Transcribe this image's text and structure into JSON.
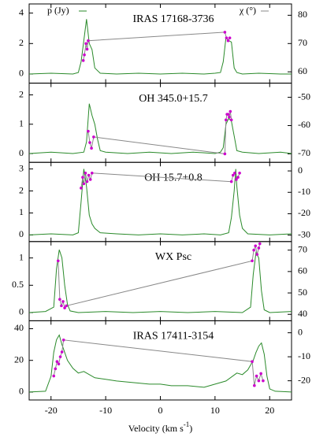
{
  "chart_data": [
    {
      "type": "line",
      "title": "IRAS 17168-3736",
      "ylim": [
        -0.6,
        4.6
      ],
      "yticks": [
        0,
        2,
        4
      ],
      "y2lim": [
        56,
        84
      ],
      "y2ticks": [
        60,
        70,
        80
      ],
      "series": [
        {
          "name": "p (Jy)",
          "color": "#2a8a2a",
          "x": [
            -24,
            -20,
            -16,
            -15,
            -14.5,
            -14,
            -13.5,
            -13,
            -12.5,
            -12,
            -11,
            -8,
            -4,
            0,
            4,
            8,
            10,
            11,
            11.5,
            12,
            12.5,
            13,
            13.5,
            14,
            15,
            18,
            22,
            24
          ],
          "values": [
            0,
            0.05,
            0,
            0.1,
            0.8,
            2.2,
            3.6,
            2.0,
            1.6,
            0.4,
            0.05,
            0,
            0.05,
            0,
            0.05,
            0,
            0.05,
            0.1,
            0.8,
            2.4,
            2.2,
            2.1,
            0.4,
            0.1,
            0,
            0.05,
            0,
            0
          ]
        },
        {
          "name": "χ (°)",
          "color": "#888888",
          "marker_color": "#cc00cc",
          "axis": "y2",
          "x": [
            -14.1,
            -13.9,
            -13.6,
            -13.4,
            -13.2,
            11.8,
            12.1,
            12.4,
            12.7
          ],
          "values": [
            64,
            66,
            70,
            68,
            71,
            74,
            72,
            71,
            72
          ]
        }
      ]
    },
    {
      "type": "line",
      "title": "OH 345.0+15.7",
      "ylim": [
        -0.3,
        2.4
      ],
      "yticks": [
        0,
        1,
        2
      ],
      "y2lim": [
        -73,
        -45
      ],
      "y2ticks": [
        -50,
        -60,
        -70
      ],
      "series": [
        {
          "color": "#2a8a2a",
          "x": [
            -24,
            -20,
            -16,
            -14,
            -13.5,
            -13,
            -12.5,
            -12,
            -11.5,
            -11,
            -10,
            -6,
            -2,
            2,
            6,
            10,
            11,
            11.5,
            12,
            12.5,
            13,
            13.5,
            14,
            15,
            18,
            22,
            24
          ],
          "values": [
            0,
            0.05,
            0,
            0.05,
            0.4,
            1.7,
            1.3,
            1.0,
            0.5,
            0.1,
            0.05,
            0,
            0.05,
            0,
            0.05,
            0,
            0.05,
            0.2,
            1.0,
            1.2,
            1.1,
            0.6,
            0.1,
            0.05,
            0,
            0.05,
            0
          ]
        },
        {
          "color": "#888888",
          "marker_color": "#cc00cc",
          "axis": "y2",
          "x": [
            -13.2,
            -12.9,
            -12.6,
            -12.2,
            11.8,
            12,
            12.2,
            12.4,
            12.6,
            12.8,
            13
          ],
          "values": [
            -62,
            -66,
            -68,
            -64,
            -70,
            -58,
            -56,
            -56,
            -57,
            -55,
            -58
          ]
        }
      ]
    },
    {
      "type": "line",
      "title": "OH 15.7+0.8",
      "ylim": [
        -0.3,
        3.3
      ],
      "yticks": [
        0,
        1,
        2,
        3
      ],
      "y2lim": [
        -33,
        4
      ],
      "y2ticks": [
        0,
        -10,
        -20,
        -30
      ],
      "series": [
        {
          "color": "#2a8a2a",
          "x": [
            -24,
            -20,
            -16,
            -15,
            -14.5,
            -14,
            -13.5,
            -13,
            -12.5,
            -12,
            -11,
            -8,
            -4,
            0,
            4,
            8,
            11,
            12.5,
            13,
            13.5,
            13.8,
            14,
            14.5,
            15,
            16,
            20,
            24
          ],
          "values": [
            0,
            0.05,
            0,
            0.1,
            1.5,
            3.0,
            2.2,
            0.9,
            0.5,
            0.3,
            0.1,
            0.05,
            0,
            0.05,
            0,
            0.05,
            0,
            0.1,
            0.8,
            2.0,
            3.0,
            2.2,
            0.9,
            0.3,
            0.05,
            0,
            0.05
          ]
        },
        {
          "color": "#888888",
          "marker_color": "#cc00cc",
          "axis": "y2",
          "x": [
            -14.5,
            -14.2,
            -14,
            -13.7,
            -13.4,
            -13.1,
            -12.8,
            -12.5,
            13,
            13.3,
            13.6,
            13.9,
            14.2,
            14.5
          ],
          "values": [
            -8,
            -3,
            -6,
            -1,
            -5,
            -2,
            -4,
            -1,
            -5,
            -2,
            -1,
            -4,
            -3,
            -1
          ]
        }
      ]
    },
    {
      "type": "line",
      "title": "WX Psc",
      "ylim": [
        -0.15,
        1.3
      ],
      "yticks": [
        0,
        0.5,
        1
      ],
      "y2lim": [
        37,
        74
      ],
      "y2ticks": [
        40,
        50,
        60,
        70
      ],
      "series": [
        {
          "color": "#2a8a2a",
          "x": [
            -24,
            -21,
            -19.5,
            -19,
            -18.5,
            -18,
            -17.5,
            -17,
            -16.5,
            -15,
            -10,
            -5,
            0,
            5,
            10,
            15,
            16.5,
            17,
            17.5,
            18,
            18.5,
            19,
            20,
            24
          ],
          "values": [
            0,
            0.02,
            0.1,
            0.8,
            1.15,
            1.0,
            0.5,
            0.15,
            0.03,
            0,
            0.02,
            0,
            0.02,
            0,
            0.02,
            0,
            0.1,
            0.7,
            1.1,
            1.0,
            0.4,
            0.05,
            0,
            0.02
          ]
        },
        {
          "color": "#888888",
          "marker_color": "#cc00cc",
          "axis": "y2",
          "x": [
            -18.7,
            -18.4,
            -18.1,
            -17.8,
            -17.5,
            -17.2,
            16.8,
            17.1,
            17.4,
            17.7,
            18,
            18.2
          ],
          "values": [
            65,
            47,
            44,
            46,
            43,
            44,
            65,
            70,
            72,
            68,
            71,
            73
          ]
        }
      ]
    },
    {
      "type": "line",
      "title": "IRAS 17411-3154",
      "ylim": [
        -5,
        45
      ],
      "yticks": [
        0,
        20,
        40
      ],
      "y2lim": [
        -28,
        5
      ],
      "y2ticks": [
        0,
        -10,
        -20
      ],
      "xlim": [
        -24,
        24
      ],
      "xticks": [
        -20,
        -10,
        0,
        10,
        20
      ],
      "x_label": "Velocity (km s",
      "x_label_sup": "-1",
      "x_label_end": ")",
      "series": [
        {
          "color": "#2a8a2a",
          "x": [
            -24,
            -21,
            -20,
            -19.5,
            -19,
            -18.5,
            -18,
            -17,
            -16,
            -15,
            -14,
            -12,
            -10,
            -8,
            -5,
            -2,
            0,
            2,
            5,
            8,
            10,
            12,
            14,
            15,
            16,
            17,
            17.5,
            18,
            18.5,
            19,
            19.5,
            20,
            21,
            24
          ],
          "values": [
            0,
            0.5,
            10,
            25,
            33,
            36,
            30,
            20,
            15,
            12,
            13,
            9,
            8,
            7,
            6,
            5,
            5,
            4,
            4,
            3,
            5,
            7,
            12,
            11,
            14,
            20,
            25,
            29,
            31,
            24,
            10,
            2,
            0.5,
            0
          ]
        },
        {
          "color": "#888888",
          "marker_color": "#cc00cc",
          "axis": "y2",
          "x": [
            -19.5,
            -19.2,
            -18.9,
            -18.6,
            -18.3,
            -18,
            -17.7,
            16.8,
            17.2,
            17.6,
            18,
            18.4,
            18.8
          ],
          "values": [
            -18,
            -15,
            -12,
            -13,
            -10,
            -8,
            -3,
            -12,
            -22,
            -18,
            -20,
            -17,
            -20
          ]
        }
      ]
    }
  ]
}
